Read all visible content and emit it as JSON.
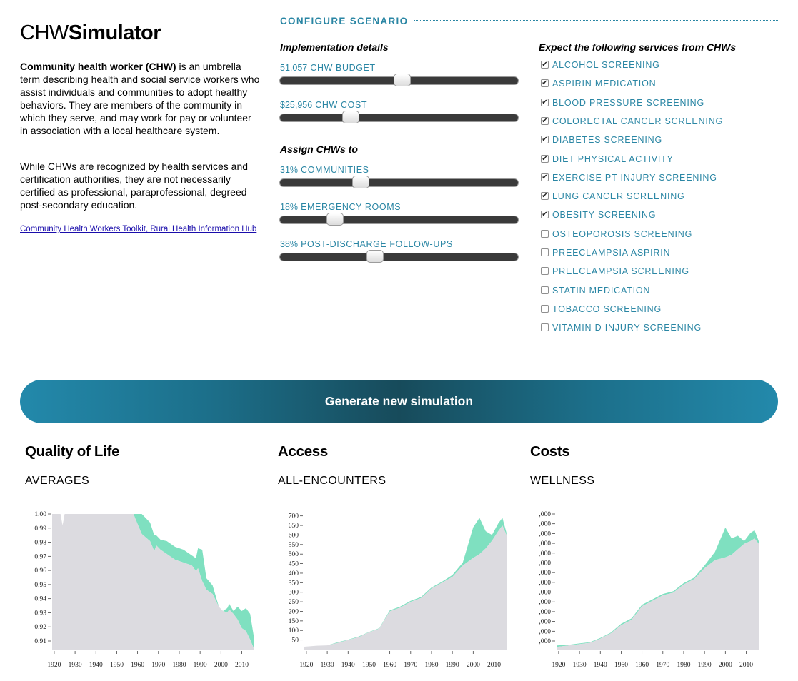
{
  "intro": {
    "title_light": "CHW",
    "title_bold": "Simulator",
    "p1_bold": "Community health worker (CHW)",
    "p1_rest": " is an umbrella term describing health and social service workers who assist individuals and communities to adopt healthy behaviors. They are members of the community in which they serve, and may work for pay or volunteer in association with a local healthcare system.",
    "p2": "While CHWs are recognized by health services and certification authorities, they are not necessarily certified as professional, paraprofessional, degreed post-secondary education.",
    "link": "Community Health Workers Toolkit, Rural Health Information Hub"
  },
  "config": {
    "heading": "CONFIGURE SCENARIO",
    "implementation_heading": "Implementation details",
    "assign_heading": "Assign CHWs to",
    "sliders": {
      "budget": {
        "value": "51,057",
        "label": "CHW BUDGET",
        "fraction": 0.51
      },
      "cost": {
        "value": "$25,956",
        "label": "CHW COST",
        "fraction": 0.28
      },
      "communities": {
        "value": "31%",
        "label": "COMMUNITIES",
        "fraction": 0.325
      },
      "er": {
        "value": "18%",
        "label": "EMERGENCY ROOMS",
        "fraction": 0.21
      },
      "discharge": {
        "value": "38%",
        "label": "POST-DISCHARGE FOLLOW-UPS",
        "fraction": 0.39
      }
    }
  },
  "services": {
    "heading": "Expect the following services from CHWs",
    "items": [
      {
        "label": "ALCOHOL SCREENING",
        "checked": true
      },
      {
        "label": "ASPIRIN MEDICATION",
        "checked": true
      },
      {
        "label": "BLOOD PRESSURE SCREENING",
        "checked": true
      },
      {
        "label": "COLORECTAL CANCER SCREENING",
        "checked": true
      },
      {
        "label": "DIABETES SCREENING",
        "checked": true
      },
      {
        "label": "DIET PHYSICAL ACTIVITY",
        "checked": true
      },
      {
        "label": "EXERCISE PT INJURY SCREENING",
        "checked": true
      },
      {
        "label": "LUNG CANCER SCREENING",
        "checked": true
      },
      {
        "label": "OBESITY SCREENING",
        "checked": true
      },
      {
        "label": "OSTEOPOROSIS SCREENING",
        "checked": false
      },
      {
        "label": "PREECLAMPSIA ASPIRIN",
        "checked": false
      },
      {
        "label": "PREECLAMPSIA SCREENING",
        "checked": false
      },
      {
        "label": "STATIN MEDICATION",
        "checked": false
      },
      {
        "label": "TOBACCO SCREENING",
        "checked": false
      },
      {
        "label": "VITAMIN D INJURY SCREENING",
        "checked": false
      }
    ]
  },
  "generate_button": "Generate new simulation",
  "colors": {
    "accent": "#2a86a4",
    "baseline_area": "#dcdbe0",
    "improvement_area": "#7fe0c0"
  },
  "panels": {
    "qol": {
      "title": "Quality of Life",
      "subtitle": "AVERAGES"
    },
    "access": {
      "title": "Access",
      "subtitle": "ALL-ENCOUNTERS"
    },
    "costs": {
      "title": "Costs",
      "subtitle": "WELLNESS"
    }
  },
  "chart_data": [
    {
      "type": "area",
      "x_ticks": [
        1920,
        1930,
        1940,
        1950,
        1960,
        1970,
        1980,
        1990,
        2000,
        2010
      ],
      "y_ticks": [
        "1.00",
        "0.99",
        "0.98",
        "0.97",
        "0.96",
        "0.95",
        "0.94",
        "0.93",
        "0.92",
        "0.91"
      ],
      "ylim": [
        0.905,
        1.0
      ],
      "xlim": [
        1919,
        2016
      ],
      "series": [
        {
          "name": "",
          "role": "baseline",
          "x": [
            1919,
            1923,
            1924,
            1925,
            1927,
            1930,
            1940,
            1950,
            1958,
            1960,
            1962,
            1966,
            1968,
            1969,
            1971,
            1974,
            1978,
            1982,
            1986,
            1988,
            1989,
            1991,
            1993,
            1996,
            1999,
            2001,
            2003,
            2004,
            2006,
            2008,
            2010,
            2012,
            2014,
            2016
          ],
          "y": [
            1.0,
            1.0,
            0.992,
            1.0,
            1.0,
            1.0,
            1.0,
            1.0,
            1.0,
            0.993,
            0.986,
            0.981,
            0.974,
            0.978,
            0.975,
            0.972,
            0.968,
            0.966,
            0.964,
            0.96,
            0.962,
            0.953,
            0.947,
            0.944,
            0.935,
            0.932,
            0.931,
            0.933,
            0.93,
            0.926,
            0.92,
            0.918,
            0.912,
            0.905
          ]
        },
        {
          "name": "",
          "role": "with CHW",
          "x": [
            1919,
            1923,
            1924,
            1925,
            1927,
            1930,
            1940,
            1950,
            1958,
            1960,
            1962,
            1966,
            1968,
            1969,
            1971,
            1974,
            1978,
            1982,
            1986,
            1988,
            1989,
            1991,
            1993,
            1996,
            1999,
            2001,
            2003,
            2004,
            2006,
            2008,
            2010,
            2012,
            2014,
            2016
          ],
          "y": [
            1.0,
            1.0,
            0.992,
            1.0,
            1.0,
            1.0,
            1.0,
            1.0,
            1.0,
            1.0,
            1.0,
            0.994,
            0.985,
            0.985,
            0.982,
            0.981,
            0.977,
            0.975,
            0.971,
            0.969,
            0.976,
            0.975,
            0.955,
            0.95,
            0.935,
            0.932,
            0.934,
            0.937,
            0.932,
            0.935,
            0.932,
            0.934,
            0.93,
            0.912
          ]
        }
      ]
    },
    {
      "type": "area",
      "x_ticks": [
        1920,
        1930,
        1940,
        1950,
        1960,
        1970,
        1980,
        1990,
        2000,
        2010
      ],
      "y_ticks": [
        50,
        100,
        150,
        200,
        250,
        300,
        350,
        400,
        450,
        500,
        550,
        600,
        650,
        700
      ],
      "ylim": [
        0,
        710
      ],
      "xlim": [
        1919,
        2016
      ],
      "series": [
        {
          "name": "",
          "role": "baseline",
          "x": [
            1919,
            1925,
            1930,
            1935,
            1940,
            1945,
            1950,
            1955,
            1960,
            1965,
            1970,
            1975,
            1980,
            1985,
            1990,
            1995,
            2000,
            2003,
            2006,
            2009,
            2012,
            2014,
            2016
          ],
          "y": [
            15,
            20,
            22,
            35,
            50,
            65,
            90,
            110,
            200,
            220,
            250,
            270,
            320,
            350,
            380,
            440,
            480,
            500,
            530,
            570,
            620,
            650,
            600
          ]
        },
        {
          "name": "",
          "role": "with CHW",
          "x": [
            1919,
            1925,
            1930,
            1935,
            1940,
            1945,
            1950,
            1955,
            1960,
            1965,
            1970,
            1975,
            1980,
            1985,
            1990,
            1995,
            2000,
            2003,
            2006,
            2009,
            2012,
            2014,
            2016
          ],
          "y": [
            15,
            20,
            22,
            38,
            52,
            68,
            92,
            112,
            205,
            225,
            255,
            275,
            325,
            355,
            390,
            455,
            640,
            690,
            620,
            600,
            660,
            690,
            610
          ]
        }
      ]
    },
    {
      "type": "area",
      "x_ticks": [
        1920,
        1930,
        1940,
        1950,
        1960,
        1970,
        1980,
        1990,
        2000,
        2010
      ],
      "y_ticks": [
        ",000",
        ",000",
        ",000",
        ",000",
        ",000",
        ",000",
        ",000",
        ",000",
        ",000",
        ",000",
        ",000",
        ",000",
        ",000",
        ",000"
      ],
      "ylim": [
        0,
        1
      ],
      "xlim": [
        1919,
        2016
      ],
      "series": [
        {
          "name": "",
          "role": "baseline",
          "x": [
            1919,
            1925,
            1930,
            1935,
            1940,
            1945,
            1950,
            1955,
            1960,
            1965,
            1970,
            1975,
            1980,
            1985,
            1990,
            1995,
            2000,
            2003,
            2006,
            2009,
            2012,
            2014,
            2016
          ],
          "y": [
            0.02,
            0.03,
            0.04,
            0.05,
            0.08,
            0.12,
            0.18,
            0.22,
            0.32,
            0.36,
            0.4,
            0.42,
            0.48,
            0.52,
            0.6,
            0.66,
            0.68,
            0.7,
            0.74,
            0.78,
            0.8,
            0.82,
            0.78
          ]
        },
        {
          "name": "",
          "role": "with CHW",
          "x": [
            1919,
            1925,
            1930,
            1935,
            1940,
            1945,
            1950,
            1955,
            1960,
            1965,
            1970,
            1975,
            1980,
            1985,
            1990,
            1995,
            2000,
            2003,
            2006,
            2009,
            2012,
            2014,
            2016
          ],
          "y": [
            0.03,
            0.035,
            0.045,
            0.055,
            0.085,
            0.125,
            0.19,
            0.23,
            0.33,
            0.37,
            0.41,
            0.43,
            0.49,
            0.53,
            0.62,
            0.72,
            0.9,
            0.82,
            0.84,
            0.8,
            0.86,
            0.88,
            0.8
          ]
        }
      ]
    }
  ]
}
